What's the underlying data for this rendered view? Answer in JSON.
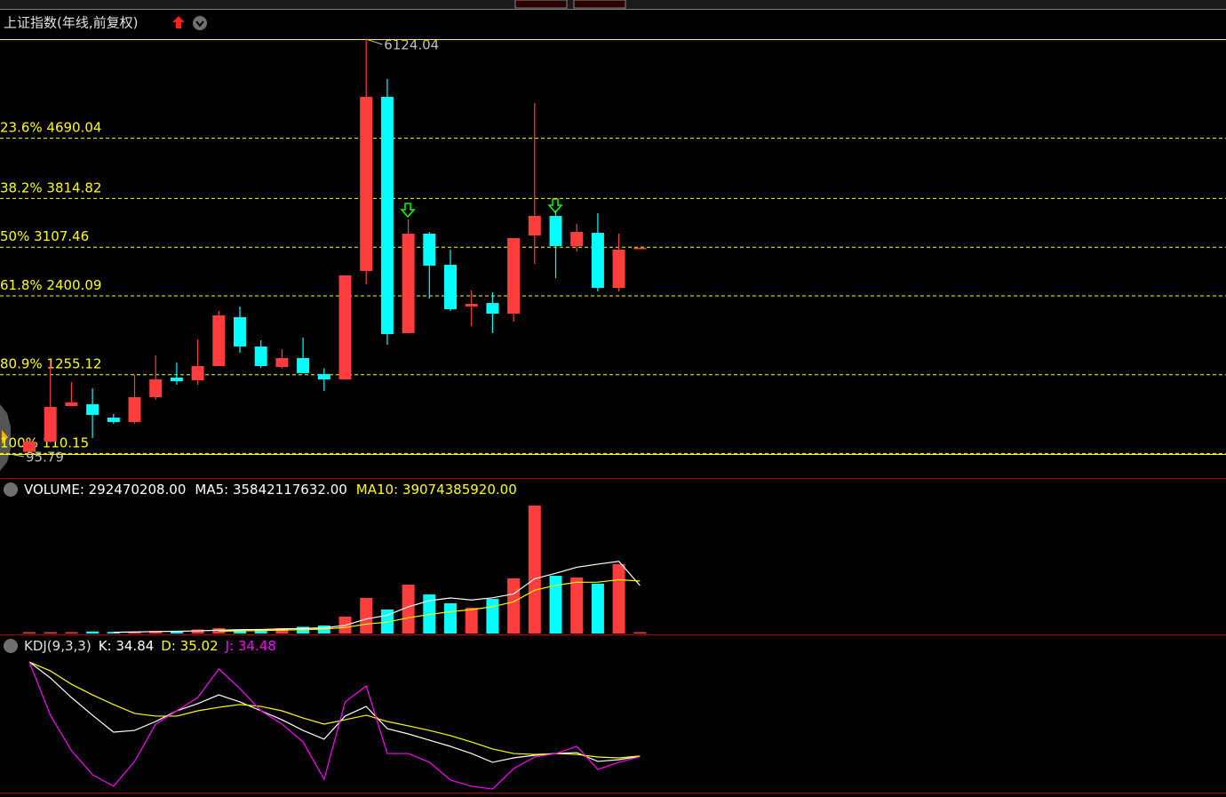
{
  "chart_data": [
    {
      "type": "candlestick",
      "title": "上证指数(年线,前复权)",
      "up_color": "#ff3d3d",
      "down_color": "#00ffff",
      "level_color": "#ffff00",
      "ylim": [
        95.79,
        6124.04
      ],
      "open": [
        127,
        277,
        793,
        819,
        625,
        561,
        922,
        1206,
        1167,
        1374,
        2084,
        1658,
        1361,
        1490,
        1258,
        1180,
        2755,
        5285,
        1852,
        3297,
        2845,
        2239,
        2290,
        2135,
        3271,
        3555,
        3116,
        3310,
        2510,
        3091
      ],
      "high": [
        300,
        1438,
        1142,
        1051,
        680,
        1245,
        1529,
        1426,
        1761,
        2174,
        2239,
        1748,
        1619,
        1787,
        1340,
        2691,
        6124.04,
        5543,
        3504,
        3323,
        3065,
        2471,
        2445,
        3233,
        5195,
        3633,
        3439,
        3594,
        3297,
        3091
      ],
      "low": [
        95.79,
        260,
        793,
        328,
        535,
        535,
        883,
        1103,
        1103,
        1374,
        1568,
        1348,
        1335,
        1271,
        1012,
        1180,
        2561,
        1684,
        1852,
        2355,
        2174,
        1955,
        1852,
        2019,
        2858,
        2652,
        3039,
        2458,
        2458,
        3091
      ],
      "close": [
        277,
        780,
        845,
        664,
        561,
        922,
        1180,
        1154,
        1374,
        2110,
        1658,
        1374,
        1490,
        1271,
        1180,
        2691,
        5285,
        1839,
        3297,
        2833,
        2200,
        2277,
        2135,
        3233,
        3555,
        3116,
        3323,
        2510,
        3065,
        3091
      ],
      "levels": [
        {
          "value": 4690.04,
          "label": "23.6% 4690.04"
        },
        {
          "value": 3814.82,
          "label": "38.2% 3814.82"
        },
        {
          "value": 3107.46,
          "label": "50% 3107.46"
        },
        {
          "value": 2400.09,
          "label": "61.8% 2400.09"
        },
        {
          "value": 1255.12,
          "label": "80.9% 1255.12"
        },
        {
          "value": 110.15,
          "label": "100% 110.15"
        }
      ],
      "high_label": 6124.04,
      "low_label": 95.79
    },
    {
      "type": "bar",
      "ylim": [
        0,
        100000000000
      ],
      "series": [
        {
          "label": "VOLUME: 292470208.00",
          "color": "#ffffff",
          "values": [
            300000000,
            500000000,
            1000000000,
            1500000000,
            1200000000,
            1500000000,
            2000000000,
            2000000000,
            3000000000,
            4000000000,
            3000000000,
            3000000000,
            4000000000,
            5000000000,
            6000000000,
            12600000000,
            26500000000,
            17900000000,
            36400000000,
            29100000000,
            22500000000,
            19200000000,
            25800000000,
            41100000000,
            95400000000,
            43000000000,
            41700000000,
            37100000000,
            51700000000,
            292470208
          ]
        },
        {
          "label": "MA5: 35842117632.00",
          "color": "#ffffff",
          "values": [
            null,
            null,
            null,
            null,
            900000000,
            1140000000,
            1440000000,
            1640000000,
            1940000000,
            2500000000,
            2800000000,
            3000000000,
            3400000000,
            3800000000,
            4200000000,
            6100000000,
            10800000000,
            13600000000,
            19900000000,
            24500000000,
            26500000000,
            25000000000,
            26600000000,
            29500000000,
            40800000000,
            44900000000,
            49400000000,
            51700000000,
            53800000000,
            35842117632
          ]
        },
        {
          "label": "MA10: 39074385920.00",
          "color": "#ffff00",
          "values": [
            null,
            null,
            null,
            null,
            null,
            null,
            null,
            null,
            null,
            1700000000,
            2000000000,
            2250000000,
            2550000000,
            2900000000,
            3400000000,
            4500000000,
            7000000000,
            8500000000,
            11700000000,
            14200000000,
            16300000000,
            17800000000,
            20000000000,
            23600000000,
            32300000000,
            35900000000,
            38200000000,
            38300000000,
            40100000000,
            39074385920
          ]
        }
      ]
    },
    {
      "type": "line",
      "title": "KDJ(9,3,3)",
      "ylim": [
        10,
        106
      ],
      "series": [
        {
          "label": "K: 34.84",
          "color": "#ffffff",
          "values": [
            99.3,
            88.4,
            75.0,
            62.9,
            51.3,
            52.5,
            58.6,
            65.9,
            70.8,
            76.8,
            72.0,
            65.9,
            59.8,
            52.5,
            46.5,
            62.3,
            68.9,
            53.7,
            50.1,
            45.8,
            41.6,
            36.7,
            30.7,
            33.7,
            35.5,
            36.7,
            37.3,
            31.3,
            32.5,
            34.84
          ]
        },
        {
          "label": "D: 35.02",
          "color": "#ffff00",
          "values": [
            99.3,
            93.2,
            84.1,
            76.8,
            70.2,
            64.1,
            62.3,
            62.3,
            65.9,
            68.3,
            70.2,
            68.9,
            65.9,
            61.0,
            56.8,
            59.8,
            62.9,
            58.6,
            55.6,
            52.5,
            48.9,
            44.6,
            39.8,
            36.7,
            36.1,
            36.7,
            36.1,
            34.3,
            33.7,
            35.02
          ]
        },
        {
          "label": "J: 34.48",
          "color": "#ff00ff",
          "values": [
            99.3,
            62.9,
            38.6,
            22.2,
            14.3,
            31.3,
            56.8,
            65.9,
            75.0,
            94.5,
            81.1,
            65.9,
            56.8,
            44.6,
            19.1,
            72.0,
            82.9,
            36.7,
            36.7,
            30.7,
            18.5,
            14.3,
            12.4,
            26.4,
            34.3,
            36.7,
            41.6,
            25.8,
            30.7,
            34.48
          ]
        }
      ]
    }
  ]
}
